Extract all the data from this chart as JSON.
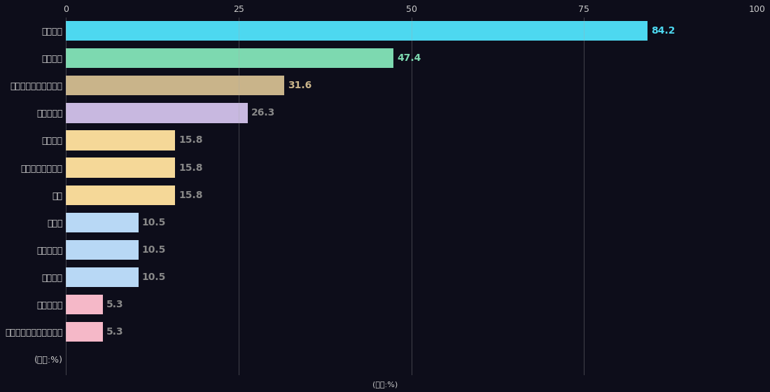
{
  "categories": [
    "仕事内容",
    "事業内容",
    "企業の将来性・成長性",
    "社員の魅力",
    "企業規模",
    "企業理念・価値観",
    "社風",
    "知名度",
    "社会貢献度",
    "給与水準",
    "女性の活躍",
    "若いうちから活躍できる",
    "(単位:%)"
  ],
  "values": [
    84.2,
    47.4,
    31.6,
    26.3,
    15.8,
    15.8,
    15.8,
    10.5,
    10.5,
    10.5,
    5.3,
    5.3,
    0
  ],
  "bar_colors": [
    "#4dd8f0",
    "#7dd9b0",
    "#c9b48a",
    "#c8b8e0",
    "#f5d898",
    "#f5d898",
    "#f5d898",
    "#b8d8f5",
    "#b8d8f5",
    "#b8d8f5",
    "#f5b8c8",
    "#f5b8c8",
    "none"
  ],
  "value_label_colors": [
    "#4dd8f0",
    "#7dd9b0",
    "#c9b48a",
    "#888888",
    "#888888",
    "#888888",
    "#888888",
    "#888888",
    "#888888",
    "#888888",
    "#888888",
    "#888888",
    "#888888"
  ],
  "background_color": "#0d0d1a",
  "grid_color": "#aaaaaa",
  "label_color": "#cccccc",
  "unit_label": "(単位:%)",
  "xlim": [
    0,
    100
  ],
  "xticks": [
    0,
    25,
    50,
    75,
    100
  ],
  "bar_height": 0.72,
  "figsize": [
    11.0,
    5.6
  ],
  "dpi": 100
}
